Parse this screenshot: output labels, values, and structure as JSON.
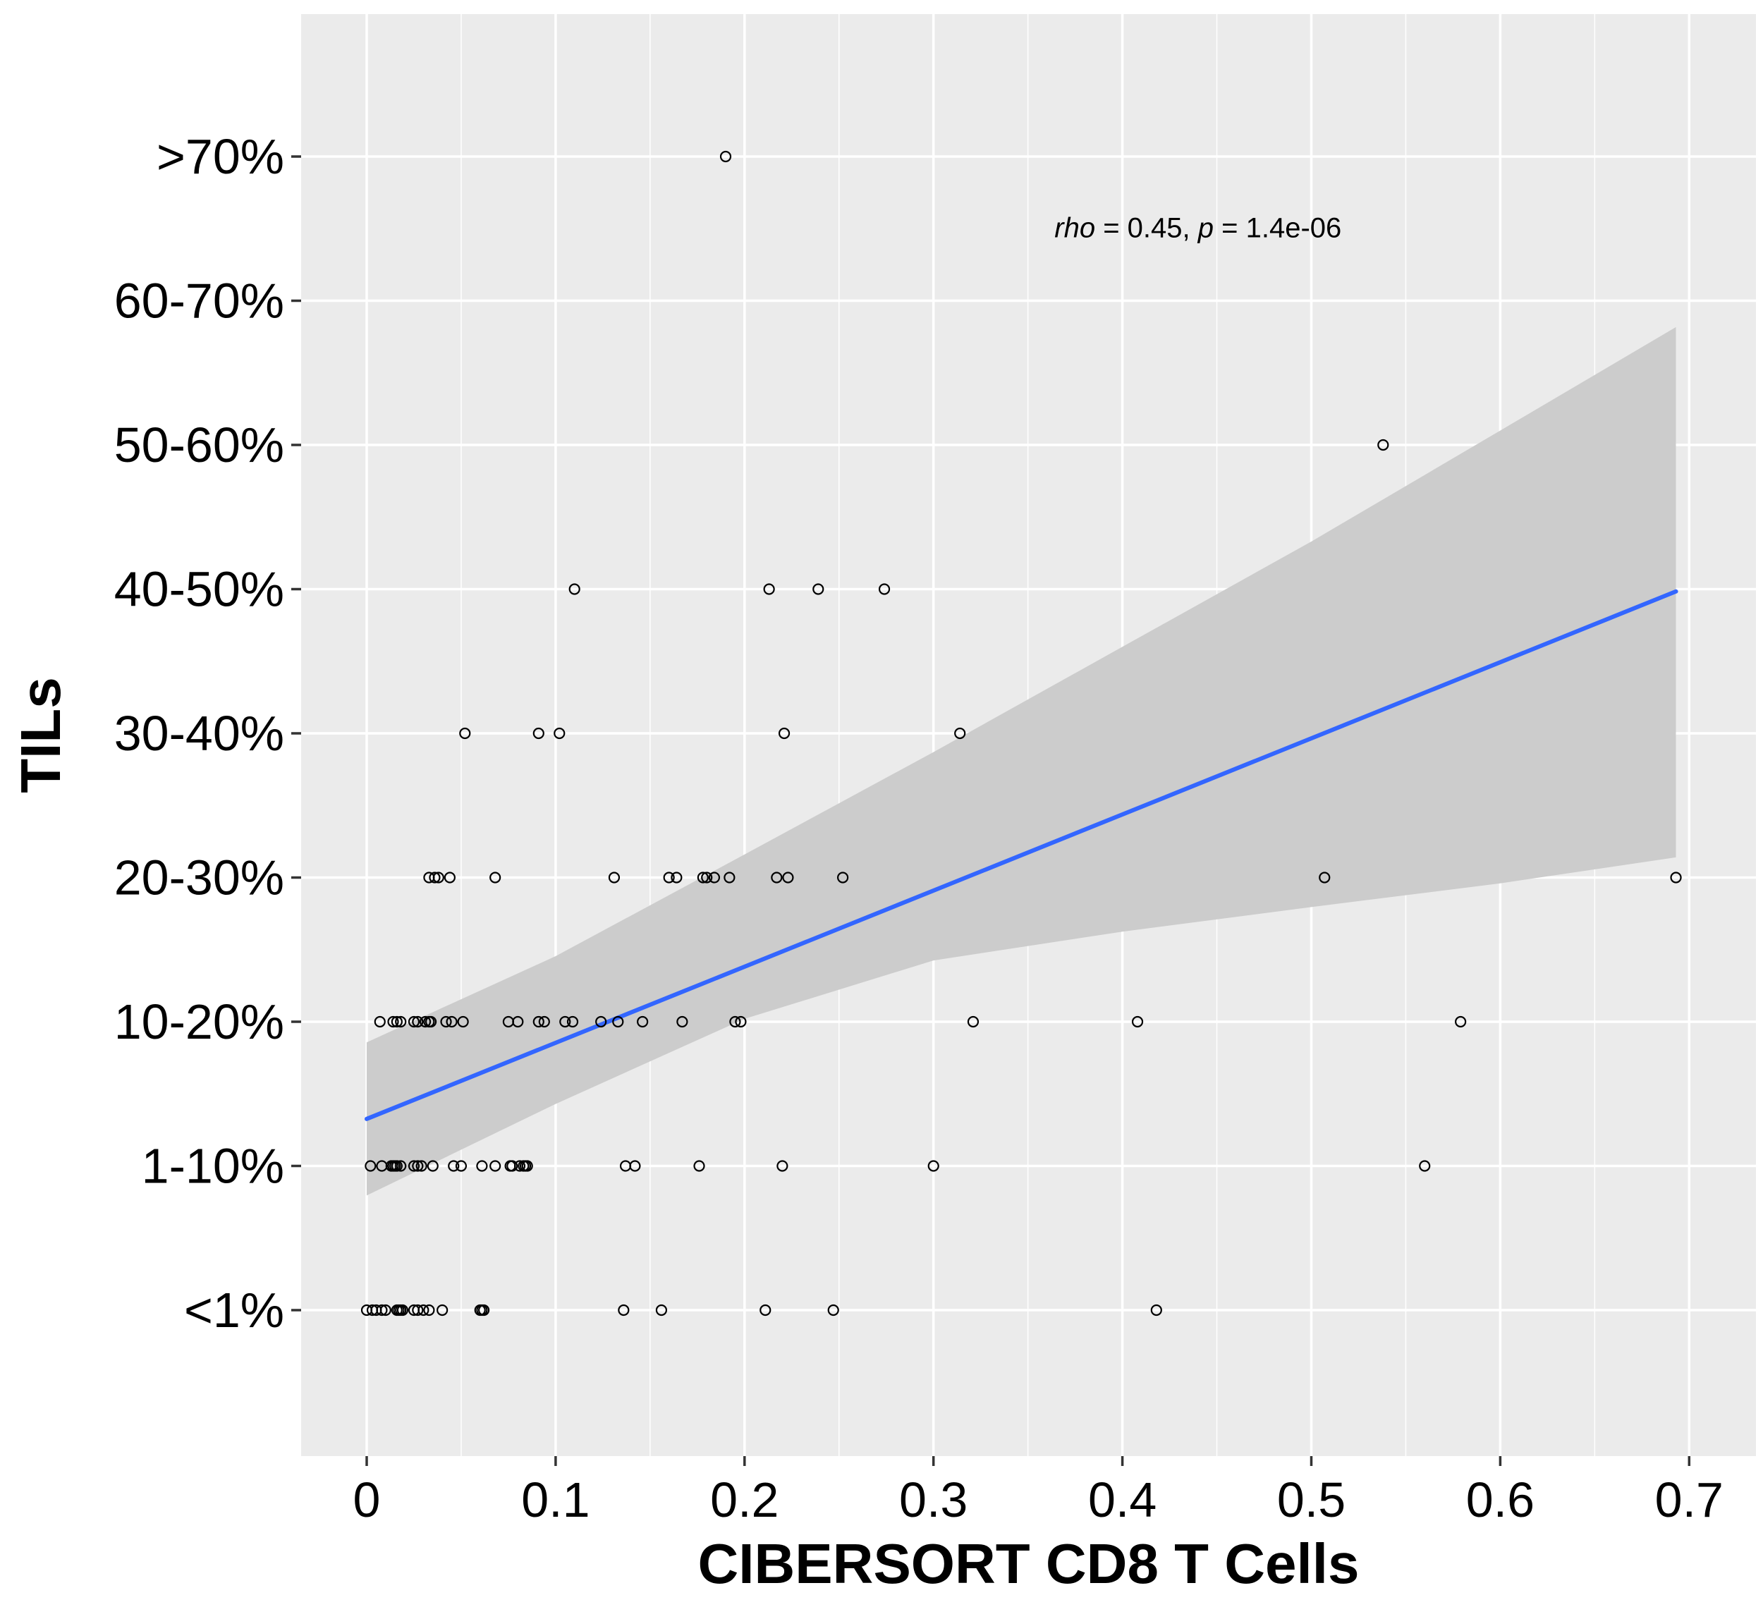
{
  "chart_data": {
    "type": "scatter",
    "title": "",
    "xlabel": "CIBERSORT CD8 T Cells",
    "ylabel": "TILs",
    "x_ticks": [
      "0",
      "0.1",
      "0.2",
      "0.3",
      "0.4",
      "0.5",
      "0.6",
      "0.7"
    ],
    "y_categories": [
      "<1%",
      "1-10%",
      "10-20%",
      "20-30%",
      "30-40%",
      "40-50%",
      "50-60%",
      "60-70%",
      ">70%"
    ],
    "xlim": [
      -0.035,
      0.735
    ],
    "ylim": [
      0.0,
      10.0
    ],
    "grid": true,
    "legend": "none",
    "annotation": {
      "rho_label": "rho",
      "rho_text": " = 0.45, ",
      "p_label": "p",
      "p_text": " = 1.4e-06"
    },
    "points": [
      [
        0.0,
        1
      ],
      [
        0.003,
        1
      ],
      [
        0.005,
        1
      ],
      [
        0.008,
        1
      ],
      [
        0.01,
        1
      ],
      [
        0.016,
        1
      ],
      [
        0.017,
        1
      ],
      [
        0.018,
        1
      ],
      [
        0.019,
        1
      ],
      [
        0.025,
        1
      ],
      [
        0.027,
        1
      ],
      [
        0.03,
        1
      ],
      [
        0.033,
        1
      ],
      [
        0.04,
        1
      ],
      [
        0.06,
        1
      ],
      [
        0.061,
        1
      ],
      [
        0.062,
        1
      ],
      [
        0.136,
        1
      ],
      [
        0.156,
        1
      ],
      [
        0.211,
        1
      ],
      [
        0.247,
        1
      ],
      [
        0.418,
        1
      ],
      [
        0.002,
        2
      ],
      [
        0.008,
        2
      ],
      [
        0.013,
        2
      ],
      [
        0.014,
        2
      ],
      [
        0.015,
        2
      ],
      [
        0.016,
        2
      ],
      [
        0.018,
        2
      ],
      [
        0.025,
        2
      ],
      [
        0.027,
        2
      ],
      [
        0.029,
        2
      ],
      [
        0.035,
        2
      ],
      [
        0.046,
        2
      ],
      [
        0.05,
        2
      ],
      [
        0.061,
        2
      ],
      [
        0.068,
        2
      ],
      [
        0.076,
        2
      ],
      [
        0.077,
        2
      ],
      [
        0.081,
        2
      ],
      [
        0.083,
        2
      ],
      [
        0.084,
        2
      ],
      [
        0.085,
        2
      ],
      [
        0.137,
        2
      ],
      [
        0.142,
        2
      ],
      [
        0.176,
        2
      ],
      [
        0.22,
        2
      ],
      [
        0.3,
        2
      ],
      [
        0.56,
        2
      ],
      [
        0.007,
        3
      ],
      [
        0.014,
        3
      ],
      [
        0.016,
        3
      ],
      [
        0.018,
        3
      ],
      [
        0.025,
        3
      ],
      [
        0.027,
        3
      ],
      [
        0.031,
        3
      ],
      [
        0.033,
        3
      ],
      [
        0.034,
        3
      ],
      [
        0.042,
        3
      ],
      [
        0.045,
        3
      ],
      [
        0.051,
        3
      ],
      [
        0.075,
        3
      ],
      [
        0.08,
        3
      ],
      [
        0.091,
        3
      ],
      [
        0.094,
        3
      ],
      [
        0.105,
        3
      ],
      [
        0.109,
        3
      ],
      [
        0.124,
        3
      ],
      [
        0.133,
        3
      ],
      [
        0.146,
        3
      ],
      [
        0.167,
        3
      ],
      [
        0.195,
        3
      ],
      [
        0.198,
        3
      ],
      [
        0.321,
        3
      ],
      [
        0.408,
        3
      ],
      [
        0.579,
        3
      ],
      [
        0.033,
        4
      ],
      [
        0.036,
        4
      ],
      [
        0.038,
        4
      ],
      [
        0.044,
        4
      ],
      [
        0.068,
        4
      ],
      [
        0.131,
        4
      ],
      [
        0.16,
        4
      ],
      [
        0.164,
        4
      ],
      [
        0.178,
        4
      ],
      [
        0.18,
        4
      ],
      [
        0.184,
        4
      ],
      [
        0.192,
        4
      ],
      [
        0.217,
        4
      ],
      [
        0.223,
        4
      ],
      [
        0.252,
        4
      ],
      [
        0.507,
        4
      ],
      [
        0.693,
        4
      ],
      [
        0.052,
        5
      ],
      [
        0.091,
        5
      ],
      [
        0.102,
        5
      ],
      [
        0.221,
        5
      ],
      [
        0.314,
        5
      ],
      [
        0.11,
        6
      ],
      [
        0.213,
        6
      ],
      [
        0.239,
        6
      ],
      [
        0.274,
        6
      ],
      [
        0.538,
        7
      ],
      [
        0.19,
        9
      ]
    ],
    "trend_line": {
      "x": [
        0.0,
        0.693
      ],
      "y": [
        2.326,
        5.984
      ],
      "color": "#3366ff"
    },
    "confidence_band": {
      "x": [
        0.0,
        0.1,
        0.2,
        0.3,
        0.4,
        0.5,
        0.6,
        0.693
      ],
      "lower": [
        1.795,
        2.43,
        3.02,
        3.425,
        3.625,
        3.795,
        3.96,
        4.14
      ],
      "upper": [
        2.857,
        3.455,
        4.16,
        4.87,
        5.6,
        6.33,
        7.1,
        7.817
      ]
    },
    "colors": {
      "panel_background": "#ebebeb",
      "grid": "#ffffff",
      "band": "#cccccc",
      "point_stroke": "#000000",
      "tick_mark": "#333333"
    }
  }
}
